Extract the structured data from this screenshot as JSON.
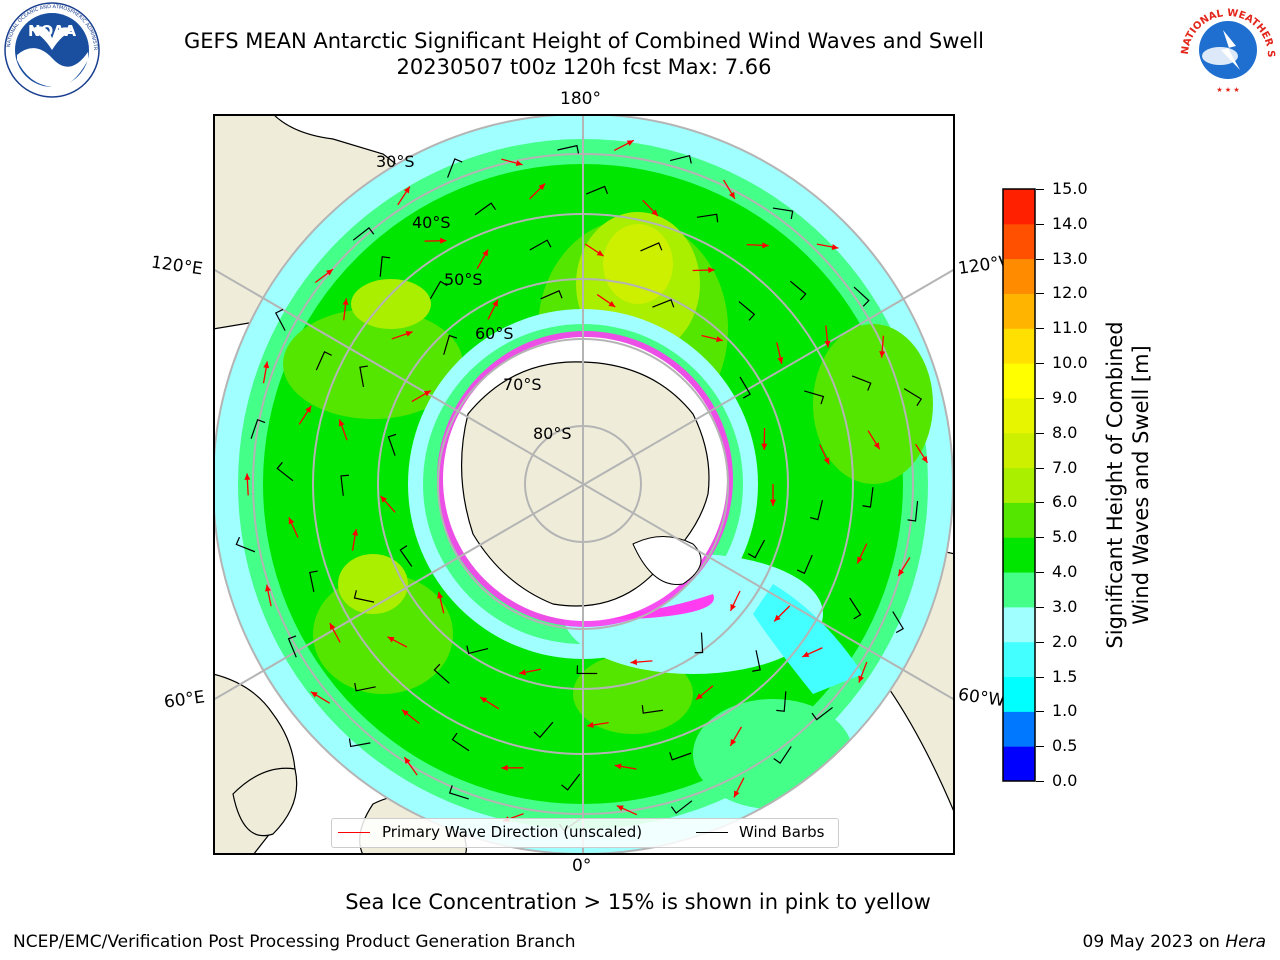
{
  "title": {
    "line1": "GEFS MEAN Antarctic Significant Height of Combined Wind Waves and Swell",
    "line2": "20230507 t00z 120h fcst   Max: 7.66"
  },
  "logos": {
    "noaa": {
      "text": "NOAA",
      "ring_text": "NATIONAL OCEANIC AND ATMOSPHERIC ADMINISTRATION · U.S. DEPARTMENT OF COMMERCE"
    },
    "nws": {
      "ring_text": "NATIONAL WEATHER SERVICE"
    }
  },
  "map": {
    "projection": "south-polar-stereographic",
    "longitude_labels": {
      "top": "180°",
      "bottom": "0°",
      "left_upper": "120°E",
      "right_upper": "120°W",
      "left_lower": "60°E",
      "right_lower": "60°W"
    },
    "latitude_labels": [
      "30°S",
      "40°S",
      "50°S",
      "60°S",
      "70°S",
      "80°S"
    ],
    "colors": {
      "land": "#efedda",
      "ocean_background": "#ffffff",
      "grid": "#b4b4b4",
      "wave_arrows": "#ff0000",
      "wind_barbs": "#000000",
      "sea_ice": "#ff3cf0"
    }
  },
  "legend": {
    "primary_wave": "Primary Wave Direction (unscaled)",
    "wind_barbs": "Wind Barbs",
    "primary_wave_color": "#ff0000",
    "wind_barbs_color": "#000000"
  },
  "colorbar": {
    "label_line1": "Significant Height of Combined",
    "label_line2": "Wind Waves and Swell [m]",
    "levels": [
      0.0,
      0.5,
      1.0,
      1.5,
      2.0,
      3.0,
      4.0,
      5.0,
      6.0,
      7.0,
      8.0,
      9.0,
      10.0,
      11.0,
      12.0,
      13.0,
      14.0,
      15.0
    ],
    "tick_labels": [
      "0.0",
      "0.5",
      "1.0",
      "1.5",
      "2.0",
      "3.0",
      "4.0",
      "5.0",
      "6.0",
      "7.0",
      "8.0",
      "9.0",
      "10.0",
      "11.0",
      "12.0",
      "13.0",
      "14.0",
      "15.0"
    ],
    "colors": [
      "#0000ff",
      "#0078ff",
      "#00ffff",
      "#44ffff",
      "#a0ffff",
      "#44ff88",
      "#00e600",
      "#55e600",
      "#aaee00",
      "#ccf000",
      "#e8f500",
      "#ffff00",
      "#ffe000",
      "#ffb400",
      "#ff8c00",
      "#ff5000",
      "#ff2000"
    ]
  },
  "caption": "Sea Ice Concentration > 15% is shown in pink to yellow",
  "footer": {
    "left": "NCEP/EMC/Verification Post Processing Product Generation Branch",
    "right_date": "09 May 2023 on ",
    "right_machine": "Hera"
  }
}
